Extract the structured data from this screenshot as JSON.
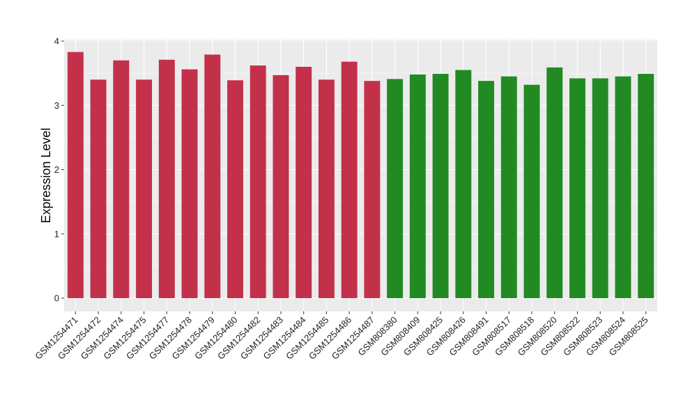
{
  "chart_data": {
    "type": "bar",
    "title": "",
    "xlabel": "",
    "ylabel": "Expression Level",
    "ylim": [
      0,
      4
    ],
    "yticks": [
      0,
      1,
      2,
      3,
      4
    ],
    "grid": true,
    "legend": "none",
    "colors": {
      "group1": "#C3304A",
      "group2": "#218A22",
      "panel": "#EBEBEB",
      "gridline": "#FFFFFF"
    },
    "categories": [
      "GSM1254471",
      "GSM1254472",
      "GSM1254474",
      "GSM1254475",
      "GSM1254477",
      "GSM1254478",
      "GSM1254479",
      "GSM1254480",
      "GSM1254482",
      "GSM1254483",
      "GSM1254484",
      "GSM1254485",
      "GSM1254486",
      "GSM1254487",
      "GSM808380",
      "GSM808409",
      "GSM808425",
      "GSM808426",
      "GSM808491",
      "GSM808517",
      "GSM808518",
      "GSM808520",
      "GSM808522",
      "GSM808523",
      "GSM808524",
      "GSM808525"
    ],
    "values": [
      3.83,
      3.4,
      3.7,
      3.4,
      3.71,
      3.56,
      3.79,
      3.39,
      3.62,
      3.47,
      3.6,
      3.4,
      3.68,
      3.38,
      3.41,
      3.48,
      3.49,
      3.55,
      3.38,
      3.45,
      3.32,
      3.59,
      3.42,
      3.42,
      3.45,
      3.49
    ],
    "groups": [
      "group1",
      "group1",
      "group1",
      "group1",
      "group1",
      "group1",
      "group1",
      "group1",
      "group1",
      "group1",
      "group1",
      "group1",
      "group1",
      "group1",
      "group2",
      "group2",
      "group2",
      "group2",
      "group2",
      "group2",
      "group2",
      "group2",
      "group2",
      "group2",
      "group2",
      "group2"
    ]
  }
}
